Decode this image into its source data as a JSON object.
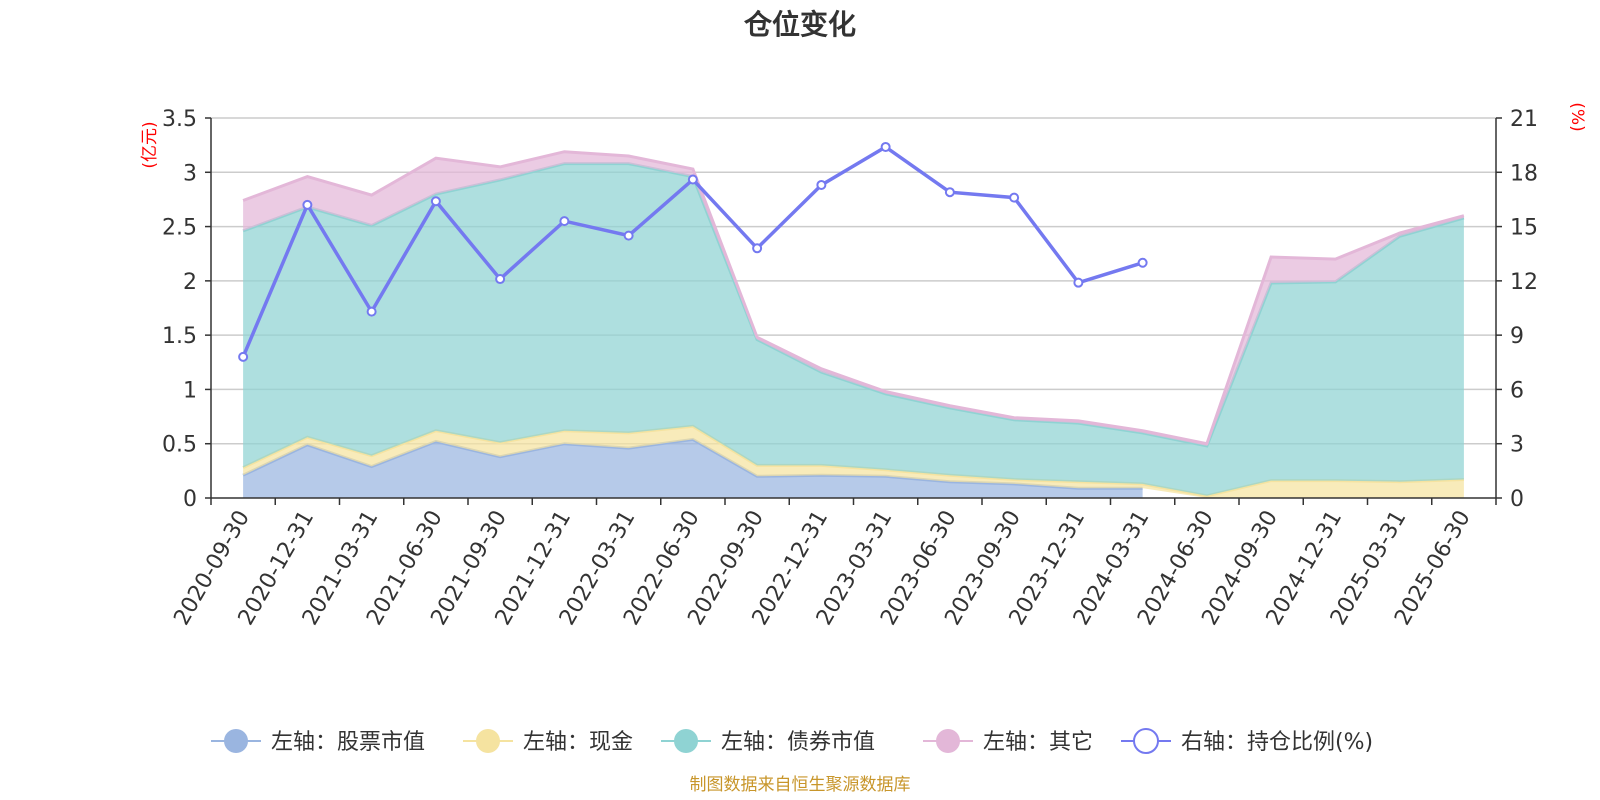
{
  "chart_data": {
    "type": "area",
    "title": "仓位变化",
    "categories": [
      "2020-09-30",
      "2020-12-31",
      "2021-03-31",
      "2021-06-30",
      "2021-09-30",
      "2021-12-31",
      "2022-03-31",
      "2022-06-30",
      "2022-09-30",
      "2022-12-31",
      "2023-03-31",
      "2023-06-30",
      "2023-09-30",
      "2023-12-31",
      "2024-03-31",
      "2024-06-30",
      "2024-09-30",
      "2024-12-31",
      "2025-03-31",
      "2025-06-30"
    ],
    "left_axis": {
      "unit": "(亿元)",
      "ylim": [
        0,
        3.5
      ],
      "ticks": [
        "0",
        "0.5",
        "1",
        "1.5",
        "2",
        "2.5",
        "3",
        "3.5"
      ]
    },
    "right_axis": {
      "unit": "(%)",
      "ylim": [
        0,
        21
      ],
      "ticks": [
        "0",
        "3",
        "6",
        "9",
        "12",
        "15",
        "18",
        "21"
      ]
    },
    "grid": true,
    "legend_position": "bottom",
    "series": [
      {
        "name": "左轴：股票市值",
        "axis": "left",
        "stacked": true,
        "color": "#9ab5e0",
        "values": [
          0.21,
          0.49,
          0.29,
          0.52,
          0.38,
          0.5,
          0.46,
          0.54,
          0.2,
          0.21,
          0.2,
          0.15,
          0.13,
          0.09,
          0.09,
          null,
          null,
          null,
          null,
          null
        ]
      },
      {
        "name": "左轴：现金",
        "axis": "left",
        "stacked": true,
        "color": "#f5e3a0",
        "values": [
          0.07,
          0.07,
          0.1,
          0.1,
          0.13,
          0.12,
          0.14,
          0.12,
          0.1,
          0.09,
          0.06,
          0.06,
          0.04,
          0.06,
          0.04,
          0.02,
          0.16,
          0.16,
          0.15,
          0.17
        ]
      },
      {
        "name": "左轴：债券市值",
        "axis": "left",
        "stacked": true,
        "color": "#8fd3d3",
        "values": [
          2.18,
          2.12,
          2.12,
          2.18,
          2.42,
          2.46,
          2.48,
          2.3,
          1.16,
          0.86,
          0.7,
          0.62,
          0.55,
          0.54,
          0.47,
          0.46,
          1.82,
          1.83,
          2.26,
          2.41
        ]
      },
      {
        "name": "左轴：其它",
        "axis": "left",
        "stacked": true,
        "color": "#e3b7d8",
        "values": [
          0.28,
          0.28,
          0.28,
          0.33,
          0.12,
          0.11,
          0.07,
          0.07,
          0.02,
          0.03,
          0.02,
          0.02,
          0.02,
          0.02,
          0.02,
          0.02,
          0.24,
          0.21,
          0.03,
          0.02
        ]
      },
      {
        "name": "右轴：持仓比例(%)",
        "axis": "right",
        "stacked": false,
        "color": "#7479f0",
        "values": [
          7.8,
          16.2,
          10.3,
          16.4,
          12.1,
          15.3,
          14.5,
          17.6,
          13.8,
          17.3,
          19.4,
          16.9,
          16.6,
          11.9,
          13.0,
          null,
          null,
          null,
          null,
          null
        ]
      }
    ]
  },
  "footer": {
    "source": "制图数据来自恒生聚源数据库"
  }
}
